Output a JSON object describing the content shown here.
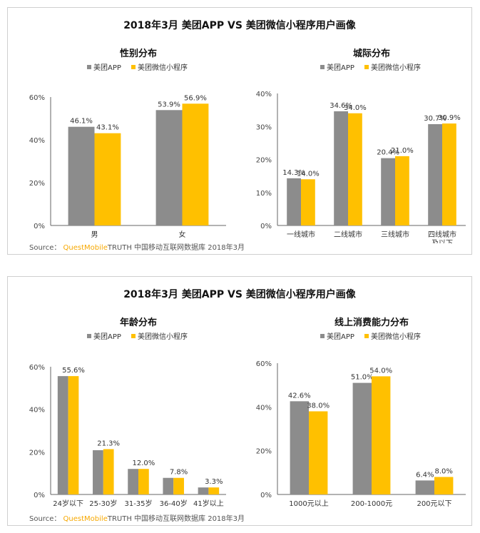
{
  "panels": [
    {
      "title": "2018年3月 美团APP VS 美团微信小程序用户画像",
      "source": {
        "prefix": "Source：",
        "brand": "QuestMobile",
        "suffix": "TRUTH 中国移动互联网数据库 2018年3月"
      }
    },
    {
      "title": "2018年3月 美团APP VS 美团微信小程序用户画像",
      "source": {
        "prefix": "Source：",
        "brand": "QuestMobile",
        "suffix": "TRUTH 中国移动互联网数据库 2018年3月"
      }
    }
  ],
  "colors": {
    "app": "#8c8c8c",
    "mini": "#ffc000"
  },
  "chart_data": [
    {
      "type": "bar",
      "title": "性别分布",
      "categories": [
        "男",
        "女"
      ],
      "series": [
        {
          "name": "美团APP",
          "values": [
            46.1,
            53.9
          ]
        },
        {
          "name": "美团微信小程序",
          "values": [
            43.1,
            56.9
          ]
        }
      ],
      "ylim": [
        0,
        60
      ],
      "yticks": [
        "0%",
        "20%",
        "40%",
        "60%"
      ],
      "data_labels": [
        [
          "46.1%",
          "53.9%"
        ],
        [
          "43.1%",
          "56.9%"
        ]
      ],
      "legend": "top"
    },
    {
      "type": "bar",
      "title": "城际分布",
      "categories": [
        "一线城市",
        "二线城市",
        "三线城市",
        "四线城市\n及以下"
      ],
      "series": [
        {
          "name": "美团APP",
          "values": [
            14.3,
            34.6,
            20.4,
            30.7
          ]
        },
        {
          "name": "美团微信小程序",
          "values": [
            14.0,
            34.0,
            21.0,
            30.9
          ]
        }
      ],
      "ylim": [
        0,
        40
      ],
      "yticks": [
        "0%",
        "10%",
        "20%",
        "30%",
        "40%"
      ],
      "data_labels": [
        [
          "14.3%",
          "34.6%",
          "20.4%",
          "30.7%"
        ],
        [
          "14.0%",
          "34.0%",
          "21.0%",
          "30.9%"
        ]
      ],
      "legend": "top"
    },
    {
      "type": "bar",
      "title": "年龄分布",
      "categories": [
        "24岁以下",
        "25-30岁",
        "31-35岁",
        "36-40岁",
        "41岁以上"
      ],
      "series": [
        {
          "name": "美团APP",
          "values": [
            55.6,
            20.8,
            12.0,
            7.8,
            3.3
          ]
        },
        {
          "name": "美团微信小程序",
          "values": [
            55.6,
            21.3,
            12.0,
            7.8,
            3.3
          ]
        }
      ],
      "ylim": [
        0,
        60
      ],
      "yticks": [
        "0%",
        "20%",
        "40%",
        "60%"
      ],
      "data_labels": [
        [
          "",
          "",
          "",
          "",
          ""
        ],
        [
          "55.6%",
          "21.3%",
          "12.0%",
          "7.8%",
          "3.3%"
        ]
      ],
      "legend": "top"
    },
    {
      "type": "bar",
      "title": "线上消费能力分布",
      "categories": [
        "1000元以上",
        "200-1000元",
        "200元以下"
      ],
      "series": [
        {
          "name": "美团APP",
          "values": [
            42.6,
            51.0,
            6.4
          ]
        },
        {
          "name": "美团微信小程序",
          "values": [
            38.0,
            54.0,
            8.0
          ]
        }
      ],
      "ylim": [
        0,
        60
      ],
      "yticks": [
        "0%",
        "20%",
        "40%",
        "60%"
      ],
      "data_labels": [
        [
          "42.6%",
          "51.0%",
          "6.4%"
        ],
        [
          "38.0%",
          "54.0%",
          "8.0%"
        ]
      ],
      "legend": "top"
    }
  ]
}
